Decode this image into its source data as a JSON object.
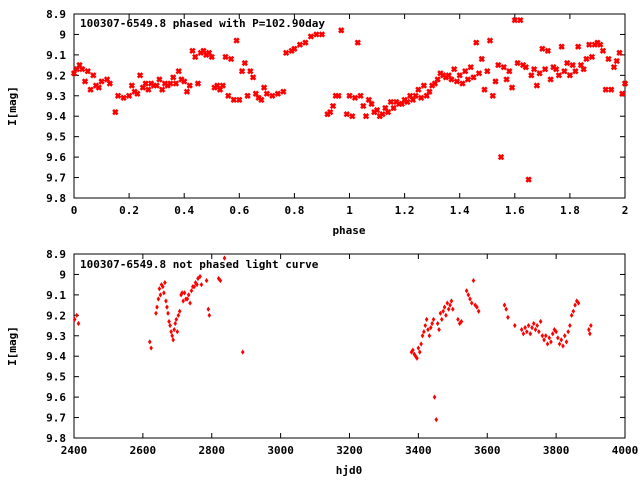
{
  "chart_data": [
    {
      "type": "scatter",
      "title": "100307-6549.8 phased with P=102.90day",
      "xlabel": "phase",
      "ylabel": "I[mag]",
      "xlim": [
        0,
        2
      ],
      "ylim": [
        8.9,
        9.8
      ],
      "y_inverted": true,
      "grid": false,
      "marker_color": "#ff0000",
      "marker": "filled-cross",
      "xticks": [
        0,
        0.2,
        0.4,
        0.6,
        0.8,
        1,
        1.2,
        1.4,
        1.6,
        1.8,
        2
      ],
      "xtick_labels": [
        "0",
        "0.2",
        "0.4",
        "0.6",
        "0.8",
        "1",
        "1.2",
        "1.4",
        "1.6",
        "1.8",
        "2"
      ],
      "yticks": [
        8.9,
        9.0,
        9.1,
        9.2,
        9.3,
        9.4,
        9.5,
        9.6,
        9.7,
        9.8
      ],
      "ytick_labels": [
        "8.9",
        "9",
        "9.1",
        "9.2",
        "9.3",
        "9.4",
        "9.5",
        "9.6",
        "9.7",
        "9.8"
      ],
      "points": [
        [
          0.0,
          9.19
        ],
        [
          0.01,
          9.17
        ],
        [
          0.02,
          9.15
        ],
        [
          0.03,
          9.17
        ],
        [
          0.04,
          9.23
        ],
        [
          0.05,
          9.18
        ],
        [
          0.06,
          9.27
        ],
        [
          0.07,
          9.2
        ],
        [
          0.08,
          9.25
        ],
        [
          0.09,
          9.26
        ],
        [
          0.1,
          9.23
        ],
        [
          0.12,
          9.22
        ],
        [
          0.13,
          9.24
        ],
        [
          0.15,
          9.38
        ],
        [
          0.16,
          9.3
        ],
        [
          0.18,
          9.31
        ],
        [
          0.2,
          9.3
        ],
        [
          0.21,
          9.25
        ],
        [
          0.22,
          9.28
        ],
        [
          0.23,
          9.29
        ],
        [
          0.24,
          9.2
        ],
        [
          0.25,
          9.26
        ],
        [
          0.26,
          9.24
        ],
        [
          0.27,
          9.27
        ],
        [
          0.28,
          9.24
        ],
        [
          0.29,
          9.25
        ],
        [
          0.3,
          9.25
        ],
        [
          0.31,
          9.22
        ],
        [
          0.32,
          9.27
        ],
        [
          0.33,
          9.24
        ],
        [
          0.34,
          9.25
        ],
        [
          0.35,
          9.24
        ],
        [
          0.36,
          9.21
        ],
        [
          0.37,
          9.24
        ],
        [
          0.38,
          9.18
        ],
        [
          0.39,
          9.22
        ],
        [
          0.4,
          9.23
        ],
        [
          0.41,
          9.28
        ],
        [
          0.42,
          9.25
        ],
        [
          0.43,
          9.08
        ],
        [
          0.44,
          9.11
        ],
        [
          0.45,
          9.24
        ],
        [
          0.46,
          9.09
        ],
        [
          0.47,
          9.08
        ],
        [
          0.48,
          9.1
        ],
        [
          0.49,
          9.09
        ],
        [
          0.5,
          9.11
        ],
        [
          0.51,
          9.26
        ],
        [
          0.52,
          9.25
        ],
        [
          0.53,
          9.27
        ],
        [
          0.54,
          9.25
        ],
        [
          0.55,
          9.11
        ],
        [
          0.56,
          9.3
        ],
        [
          0.57,
          9.12
        ],
        [
          0.58,
          9.32
        ],
        [
          0.59,
          9.03
        ],
        [
          0.6,
          9.32
        ],
        [
          0.61,
          9.18
        ],
        [
          0.62,
          9.14
        ],
        [
          0.63,
          9.3
        ],
        [
          0.64,
          9.18
        ],
        [
          0.65,
          9.21
        ],
        [
          0.66,
          9.29
        ],
        [
          0.67,
          9.31
        ],
        [
          0.68,
          9.32
        ],
        [
          0.69,
          9.26
        ],
        [
          0.7,
          9.29
        ],
        [
          0.72,
          9.3
        ],
        [
          0.74,
          9.29
        ],
        [
          0.76,
          9.28
        ],
        [
          0.77,
          9.09
        ],
        [
          0.79,
          9.08
        ],
        [
          0.8,
          9.07
        ],
        [
          0.82,
          9.05
        ],
        [
          0.84,
          9.04
        ],
        [
          0.86,
          9.01
        ],
        [
          0.88,
          9.0
        ],
        [
          0.9,
          9.0
        ],
        [
          0.92,
          9.39
        ],
        [
          0.93,
          9.38
        ],
        [
          0.94,
          9.35
        ],
        [
          0.95,
          9.3
        ],
        [
          0.96,
          9.3
        ],
        [
          0.97,
          8.98
        ],
        [
          0.99,
          9.39
        ],
        [
          1.0,
          9.3
        ],
        [
          1.01,
          9.4
        ],
        [
          1.02,
          9.31
        ],
        [
          1.03,
          9.04
        ],
        [
          1.04,
          9.3
        ],
        [
          1.05,
          9.35
        ],
        [
          1.06,
          9.4
        ],
        [
          1.07,
          9.32
        ],
        [
          1.08,
          9.34
        ],
        [
          1.09,
          9.38
        ],
        [
          1.1,
          9.37
        ],
        [
          1.11,
          9.4
        ],
        [
          1.12,
          9.39
        ],
        [
          1.13,
          9.36
        ],
        [
          1.14,
          9.38
        ],
        [
          1.15,
          9.33
        ],
        [
          1.16,
          9.36
        ],
        [
          1.17,
          9.33
        ],
        [
          1.18,
          9.34
        ],
        [
          1.19,
          9.34
        ],
        [
          1.2,
          9.32
        ],
        [
          1.21,
          9.33
        ],
        [
          1.22,
          9.3
        ],
        [
          1.23,
          9.32
        ],
        [
          1.24,
          9.3
        ],
        [
          1.25,
          9.27
        ],
        [
          1.26,
          9.31
        ],
        [
          1.27,
          9.25
        ],
        [
          1.28,
          9.3
        ],
        [
          1.29,
          9.28
        ],
        [
          1.3,
          9.25
        ],
        [
          1.31,
          9.24
        ],
        [
          1.32,
          9.22
        ],
        [
          1.33,
          9.19
        ],
        [
          1.34,
          9.2
        ],
        [
          1.35,
          9.21
        ],
        [
          1.36,
          9.2
        ],
        [
          1.37,
          9.22
        ],
        [
          1.38,
          9.17
        ],
        [
          1.39,
          9.23
        ],
        [
          1.4,
          9.2
        ],
        [
          1.41,
          9.24
        ],
        [
          1.42,
          9.18
        ],
        [
          1.43,
          9.22
        ],
        [
          1.44,
          9.16
        ],
        [
          1.45,
          9.21
        ],
        [
          1.46,
          9.04
        ],
        [
          1.47,
          9.19
        ],
        [
          1.48,
          9.12
        ],
        [
          1.49,
          9.27
        ],
        [
          1.5,
          9.18
        ],
        [
          1.51,
          9.03
        ],
        [
          1.52,
          9.3
        ],
        [
          1.53,
          9.23
        ],
        [
          1.54,
          9.15
        ],
        [
          1.55,
          9.6
        ],
        [
          1.56,
          9.16
        ],
        [
          1.57,
          9.22
        ],
        [
          1.58,
          9.18
        ],
        [
          1.59,
          9.26
        ],
        [
          1.6,
          8.93
        ],
        [
          1.61,
          9.14
        ],
        [
          1.62,
          8.93
        ],
        [
          1.63,
          9.15
        ],
        [
          1.64,
          9.16
        ],
        [
          1.65,
          9.71
        ],
        [
          1.66,
          9.2
        ],
        [
          1.67,
          9.17
        ],
        [
          1.68,
          9.25
        ],
        [
          1.69,
          9.19
        ],
        [
          1.7,
          9.07
        ],
        [
          1.71,
          9.17
        ],
        [
          1.72,
          9.08
        ],
        [
          1.73,
          9.22
        ],
        [
          1.74,
          9.16
        ],
        [
          1.75,
          9.17
        ],
        [
          1.76,
          9.2
        ],
        [
          1.77,
          9.06
        ],
        [
          1.78,
          9.18
        ],
        [
          1.79,
          9.14
        ],
        [
          1.8,
          9.2
        ],
        [
          1.81,
          9.15
        ],
        [
          1.82,
          9.18
        ],
        [
          1.83,
          9.06
        ],
        [
          1.84,
          9.15
        ],
        [
          1.85,
          9.17
        ],
        [
          1.86,
          9.12
        ],
        [
          1.87,
          9.05
        ],
        [
          1.88,
          9.11
        ],
        [
          1.89,
          9.05
        ],
        [
          1.9,
          9.04
        ],
        [
          1.91,
          9.05
        ],
        [
          1.92,
          9.08
        ],
        [
          1.93,
          9.27
        ],
        [
          1.94,
          9.12
        ],
        [
          1.95,
          9.27
        ],
        [
          1.96,
          9.16
        ],
        [
          1.97,
          9.13
        ],
        [
          1.98,
          9.09
        ],
        [
          1.99,
          9.29
        ],
        [
          2.0,
          9.24
        ]
      ]
    },
    {
      "type": "scatter",
      "title": "100307-6549.8 not phased light curve",
      "xlabel": "hjd0",
      "ylabel": "I[mag]",
      "xlim": [
        2400,
        4000
      ],
      "ylim": [
        8.9,
        9.8
      ],
      "y_inverted": true,
      "grid": false,
      "marker_color": "#ff0000",
      "marker": "small-diamond",
      "xticks": [
        2400,
        2600,
        2800,
        3000,
        3200,
        3400,
        3600,
        3800,
        4000
      ],
      "xtick_labels": [
        "2400",
        "2600",
        "2800",
        "3000",
        "3200",
        "3400",
        "3600",
        "3800",
        "4000"
      ],
      "yticks": [
        8.9,
        9.0,
        9.1,
        9.2,
        9.3,
        9.4,
        9.5,
        9.6,
        9.7,
        9.8
      ],
      "ytick_labels": [
        "8.9",
        "9",
        "9.1",
        "9.2",
        "9.3",
        "9.4",
        "9.5",
        "9.6",
        "9.7",
        "9.8"
      ],
      "points": [
        [
          2402,
          9.22
        ],
        [
          2408,
          9.2
        ],
        [
          2413,
          9.24
        ],
        [
          2620,
          9.33
        ],
        [
          2624,
          9.36
        ],
        [
          2638,
          9.19
        ],
        [
          2641,
          9.16
        ],
        [
          2645,
          9.12
        ],
        [
          2648,
          9.07
        ],
        [
          2651,
          9.1
        ],
        [
          2654,
          9.05
        ],
        [
          2658,
          9.06
        ],
        [
          2661,
          9.09
        ],
        [
          2664,
          9.04
        ],
        [
          2667,
          9.13
        ],
        [
          2670,
          9.16
        ],
        [
          2673,
          9.19
        ],
        [
          2676,
          9.23
        ],
        [
          2679,
          9.25
        ],
        [
          2682,
          9.28
        ],
        [
          2685,
          9.3
        ],
        [
          2688,
          9.32
        ],
        [
          2691,
          9.27
        ],
        [
          2694,
          9.24
        ],
        [
          2697,
          9.22
        ],
        [
          2700,
          9.28
        ],
        [
          2703,
          9.2
        ],
        [
          2707,
          9.18
        ],
        [
          2711,
          9.1
        ],
        [
          2714,
          9.09
        ],
        [
          2717,
          9.13
        ],
        [
          2721,
          9.09
        ],
        [
          2725,
          9.12
        ],
        [
          2729,
          9.12
        ],
        [
          2733,
          9.1
        ],
        [
          2737,
          9.14
        ],
        [
          2741,
          9.08
        ],
        [
          2745,
          9.06
        ],
        [
          2749,
          9.06
        ],
        [
          2753,
          9.04
        ],
        [
          2757,
          9.05
        ],
        [
          2760,
          9.02
        ],
        [
          2766,
          9.01
        ],
        [
          2770,
          9.05
        ],
        [
          2785,
          9.03
        ],
        [
          2790,
          9.17
        ],
        [
          2793,
          9.2
        ],
        [
          2820,
          9.02
        ],
        [
          2825,
          9.03
        ],
        [
          2837,
          8.92
        ],
        [
          2890,
          9.38
        ],
        [
          3380,
          9.38
        ],
        [
          3384,
          9.37
        ],
        [
          3388,
          9.39
        ],
        [
          3392,
          9.4
        ],
        [
          3396,
          9.41
        ],
        [
          3400,
          9.36
        ],
        [
          3404,
          9.38
        ],
        [
          3408,
          9.34
        ],
        [
          3412,
          9.3
        ],
        [
          3416,
          9.28
        ],
        [
          3420,
          9.25
        ],
        [
          3424,
          9.22
        ],
        [
          3428,
          9.27
        ],
        [
          3432,
          9.3
        ],
        [
          3436,
          9.26
        ],
        [
          3440,
          9.24
        ],
        [
          3444,
          9.22
        ],
        [
          3447,
          9.6
        ],
        [
          3452,
          9.71
        ],
        [
          3456,
          9.24
        ],
        [
          3460,
          9.27
        ],
        [
          3464,
          9.19
        ],
        [
          3468,
          9.22
        ],
        [
          3472,
          9.18
        ],
        [
          3476,
          9.16
        ],
        [
          3480,
          9.2
        ],
        [
          3484,
          9.14
        ],
        [
          3488,
          9.17
        ],
        [
          3492,
          9.15
        ],
        [
          3496,
          9.13
        ],
        [
          3500,
          9.17
        ],
        [
          3515,
          9.22
        ],
        [
          3520,
          9.24
        ],
        [
          3525,
          9.23
        ],
        [
          3540,
          9.08
        ],
        [
          3545,
          9.1
        ],
        [
          3550,
          9.12
        ],
        [
          3555,
          9.14
        ],
        [
          3560,
          9.03
        ],
        [
          3565,
          9.15
        ],
        [
          3570,
          9.16
        ],
        [
          3575,
          9.18
        ],
        [
          3650,
          9.15
        ],
        [
          3655,
          9.17
        ],
        [
          3660,
          9.21
        ],
        [
          3680,
          9.25
        ],
        [
          3700,
          9.27
        ],
        [
          3705,
          9.29
        ],
        [
          3710,
          9.26
        ],
        [
          3715,
          9.28
        ],
        [
          3720,
          9.25
        ],
        [
          3725,
          9.29
        ],
        [
          3730,
          9.26
        ],
        [
          3735,
          9.24
        ],
        [
          3740,
          9.27
        ],
        [
          3745,
          9.25
        ],
        [
          3750,
          9.28
        ],
        [
          3755,
          9.23
        ],
        [
          3760,
          9.3
        ],
        [
          3765,
          9.32
        ],
        [
          3770,
          9.3
        ],
        [
          3775,
          9.34
        ],
        [
          3780,
          9.31
        ],
        [
          3785,
          9.33
        ],
        [
          3790,
          9.29
        ],
        [
          3795,
          9.27
        ],
        [
          3800,
          9.28
        ],
        [
          3805,
          9.31
        ],
        [
          3810,
          9.34
        ],
        [
          3815,
          9.32
        ],
        [
          3820,
          9.35
        ],
        [
          3825,
          9.3
        ],
        [
          3830,
          9.33
        ],
        [
          3835,
          9.28
        ],
        [
          3840,
          9.25
        ],
        [
          3845,
          9.2
        ],
        [
          3850,
          9.18
        ],
        [
          3855,
          9.15
        ],
        [
          3860,
          9.13
        ],
        [
          3865,
          9.14
        ],
        [
          3895,
          9.27
        ],
        [
          3898,
          9.29
        ],
        [
          3901,
          9.25
        ]
      ]
    }
  ]
}
